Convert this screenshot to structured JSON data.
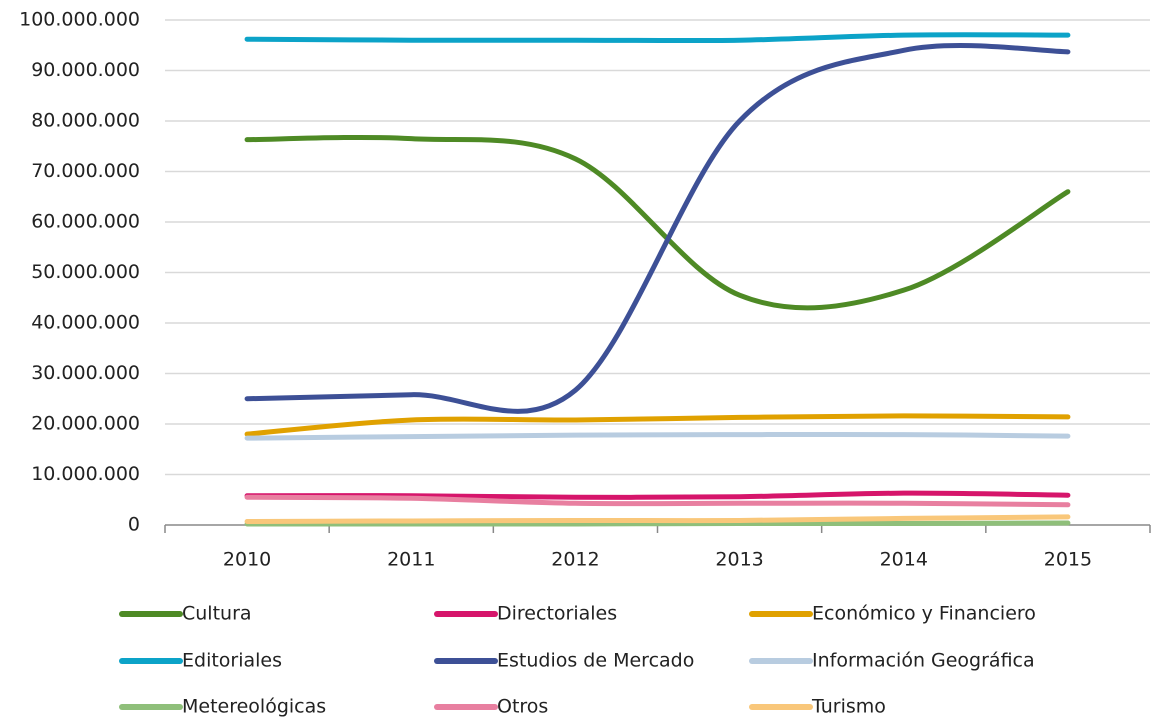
{
  "chart_data": {
    "type": "line",
    "smooth": true,
    "categories": [
      "2010",
      "2011",
      "2012",
      "2013",
      "2014",
      "2015"
    ],
    "ylim": [
      0,
      100000000
    ],
    "yticks": [
      {
        "value": 0,
        "label": "0"
      },
      {
        "value": 10000000,
        "label": "10.000.000"
      },
      {
        "value": 20000000,
        "label": "20.000.000"
      },
      {
        "value": 30000000,
        "label": "30.000.000"
      },
      {
        "value": 40000000,
        "label": "40.000.000"
      },
      {
        "value": 50000000,
        "label": "50.000.000"
      },
      {
        "value": 60000000,
        "label": "60.000.000"
      },
      {
        "value": 70000000,
        "label": "70.000.000"
      },
      {
        "value": 80000000,
        "label": "80.000.000"
      },
      {
        "value": 90000000,
        "label": "90.000.000"
      },
      {
        "value": 100000000,
        "label": "100.000.000"
      }
    ],
    "grid": true,
    "legend": "bottom",
    "series": [
      {
        "name": "Cultura",
        "color": "#4e8a25",
        "values": [
          76300000,
          76500000,
          72500000,
          45500000,
          46500000,
          66000000
        ]
      },
      {
        "name": "Directoriales",
        "color": "#d6156b",
        "values": [
          5800000,
          5800000,
          5500000,
          5600000,
          6300000,
          5900000
        ]
      },
      {
        "name": "Económico y Financiero",
        "color": "#e0a100",
        "values": [
          18000000,
          20800000,
          20800000,
          21300000,
          21600000,
          21400000
        ]
      },
      {
        "name": "Editoriales",
        "color": "#0ca3c8",
        "values": [
          96200000,
          96000000,
          96000000,
          96000000,
          97000000,
          97000000
        ]
      },
      {
        "name": "Estudios de Mercado",
        "color": "#3d5096",
        "values": [
          25000000,
          25800000,
          26700000,
          80000000,
          94000000,
          93700000
        ]
      },
      {
        "name": "Información Geográfica",
        "color": "#b8cce0",
        "values": [
          17200000,
          17500000,
          17800000,
          17900000,
          17900000,
          17600000
        ]
      },
      {
        "name": "Metereológicas",
        "color": "#8fbf7a",
        "values": [
          200000,
          200000,
          200000,
          300000,
          300000,
          400000
        ]
      },
      {
        "name": "Otros",
        "color": "#e87fa0",
        "values": [
          5500000,
          5300000,
          4300000,
          4300000,
          4300000,
          4000000
        ]
      },
      {
        "name": "Turismo",
        "color": "#f9c77a",
        "values": [
          700000,
          800000,
          900000,
          900000,
          1300000,
          1600000
        ]
      }
    ]
  }
}
